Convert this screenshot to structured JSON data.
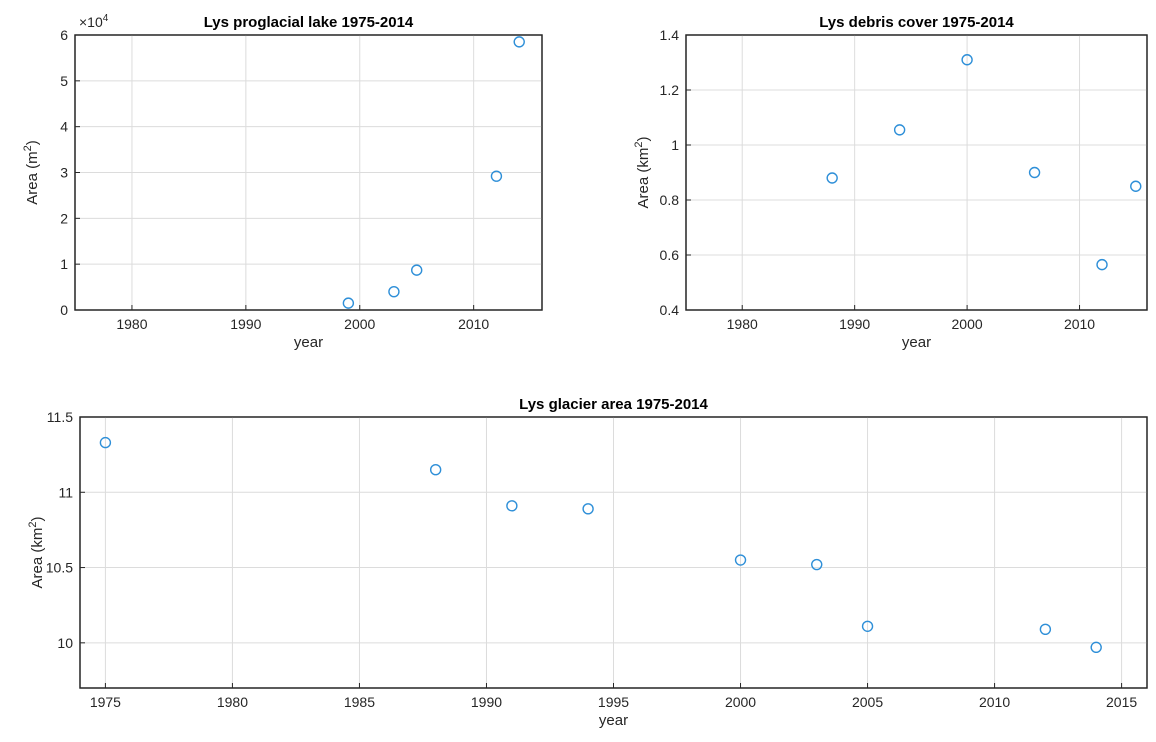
{
  "chart_data": [
    {
      "type": "scatter",
      "title": "Lys proglacial lake 1975-2014",
      "xlabel": "year",
      "ylabel": {
        "text": "Area (m",
        "sup": "2",
        "close": ")"
      },
      "y_exponent": {
        "base": "×10",
        "power": "4"
      },
      "xlim": [
        1975,
        2016
      ],
      "ylim": [
        0,
        6
      ],
      "xticks": [
        1980,
        1990,
        2000,
        2010
      ],
      "yticks": [
        0,
        1,
        2,
        3,
        4,
        5,
        6
      ],
      "grid": true,
      "marker_color": "#2e8fd8",
      "points": [
        {
          "x": 1999,
          "y": 0.15
        },
        {
          "x": 2003,
          "y": 0.4
        },
        {
          "x": 2005,
          "y": 0.87
        },
        {
          "x": 2012,
          "y": 2.92
        },
        {
          "x": 2014,
          "y": 5.85
        }
      ]
    },
    {
      "type": "scatter",
      "title": "Lys debris cover 1975-2014",
      "xlabel": "year",
      "ylabel": {
        "text": "Area (km",
        "sup": "2",
        "close": ")"
      },
      "xlim": [
        1975,
        2016
      ],
      "ylim": [
        0.4,
        1.4
      ],
      "xticks": [
        1980,
        1990,
        2000,
        2010
      ],
      "yticks": [
        0.4,
        0.6,
        0.8,
        1,
        1.2,
        1.4
      ],
      "grid": true,
      "marker_color": "#2e8fd8",
      "points": [
        {
          "x": 1988,
          "y": 0.88
        },
        {
          "x": 1994,
          "y": 1.055
        },
        {
          "x": 2000,
          "y": 1.31
        },
        {
          "x": 2006,
          "y": 0.9
        },
        {
          "x": 2012,
          "y": 0.565
        },
        {
          "x": 2015,
          "y": 0.85
        }
      ]
    },
    {
      "type": "scatter",
      "title": "Lys glacier area 1975-2014",
      "xlabel": "year",
      "ylabel": {
        "text": "Area (km",
        "sup": "2",
        "close": ")"
      },
      "xlim": [
        1974,
        2016
      ],
      "ylim": [
        9.7,
        11.5
      ],
      "xticks": [
        1975,
        1980,
        1985,
        1990,
        1995,
        2000,
        2005,
        2010,
        2015
      ],
      "yticks": [
        10,
        10.5,
        11,
        11.5
      ],
      "grid": true,
      "marker_color": "#2e8fd8",
      "points": [
        {
          "x": 1975,
          "y": 11.33
        },
        {
          "x": 1988,
          "y": 11.15
        },
        {
          "x": 1991,
          "y": 10.91
        },
        {
          "x": 1994,
          "y": 10.89
        },
        {
          "x": 2000,
          "y": 10.55
        },
        {
          "x": 2003,
          "y": 10.52
        },
        {
          "x": 2005,
          "y": 10.11
        },
        {
          "x": 2012,
          "y": 10.09
        },
        {
          "x": 2014,
          "y": 9.97
        }
      ]
    }
  ]
}
